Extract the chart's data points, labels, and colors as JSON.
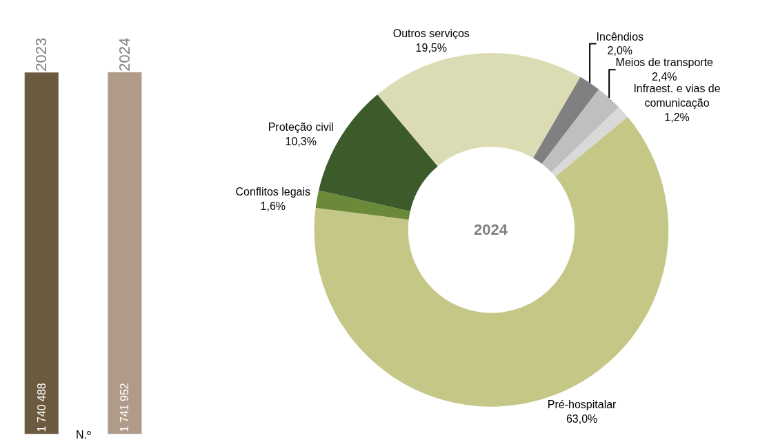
{
  "chart_data": [
    {
      "type": "bar",
      "categories": [
        "2023",
        "2024"
      ],
      "values": [
        1740488,
        1741952
      ],
      "value_labels": [
        "1 740 488",
        "1 741 952"
      ],
      "colors": [
        "#6b5a3e",
        "#b09a88"
      ],
      "xlabel": "N.º"
    },
    {
      "type": "donut",
      "title": "2024",
      "categories": [
        "Infraest. e vias de comunicação",
        "Pré-hospitalar",
        "Conflitos legais",
        "Proteção civil",
        "Outros serviços",
        "Incêndios",
        "Meios de transporte"
      ],
      "values": [
        1.2,
        63.0,
        1.6,
        10.3,
        19.5,
        2.0,
        2.4
      ],
      "value_labels": [
        "1,2%",
        "63,0%",
        "1,6%",
        "10,3%",
        "19,5%",
        "2,0%",
        "2,4%"
      ],
      "colors": [
        "#d9d9d9",
        "#c4c785",
        "#6a8a3a",
        "#3d5a2a",
        "#dcdcb4",
        "#808080",
        "#bfbfbf"
      ]
    }
  ]
}
